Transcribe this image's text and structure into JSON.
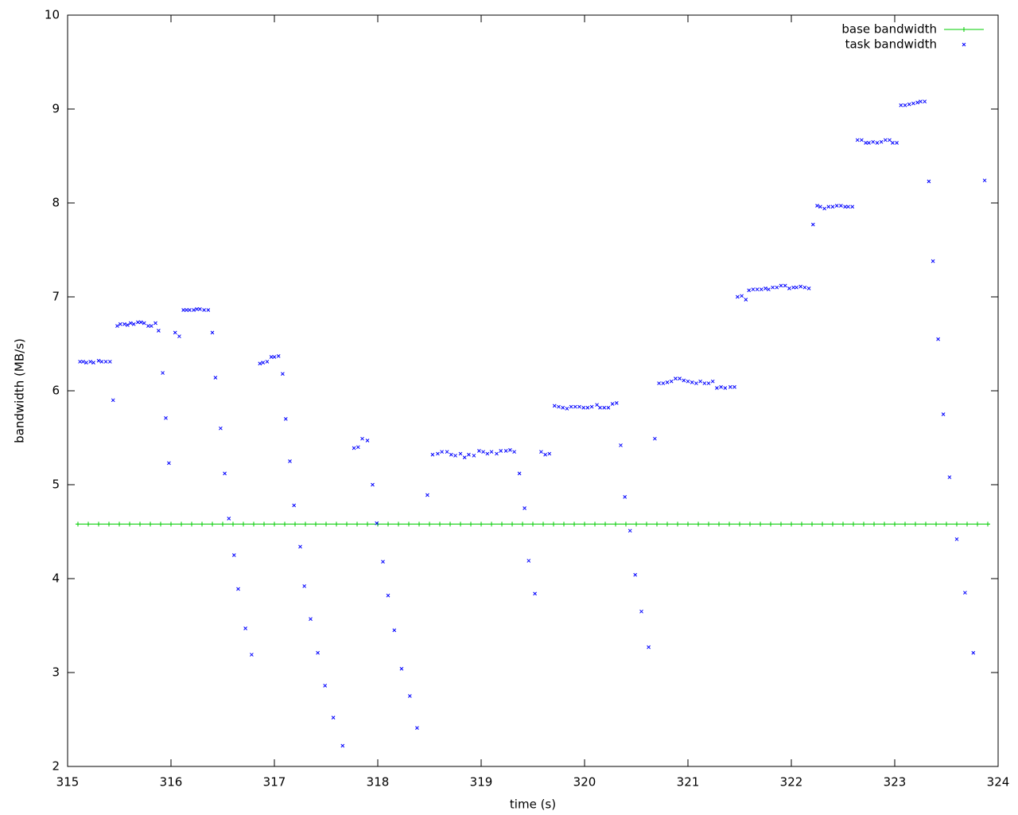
{
  "chart_data": {
    "type": "scatter",
    "xlabel": "time (s)",
    "ylabel": "bandwidth (MB/s)",
    "xlim": [
      315,
      324
    ],
    "xticks": [
      315,
      316,
      317,
      318,
      319,
      320,
      321,
      322,
      323,
      324
    ],
    "ylim": [
      2,
      10
    ],
    "yticks": [
      2,
      3,
      4,
      5,
      6,
      7,
      8,
      9,
      10
    ],
    "grid": false,
    "legend": "top-right",
    "series": [
      {
        "name": "base bandwidth",
        "color": "#00cc00",
        "marker": "plus",
        "line": true,
        "x": [
          315.1,
          315.2,
          315.3,
          315.4,
          315.5,
          315.6,
          315.7,
          315.8,
          315.9,
          316.0,
          316.1,
          316.2,
          316.3,
          316.4,
          316.5,
          316.6,
          316.7,
          316.8,
          316.9,
          317.0,
          317.1,
          317.2,
          317.3,
          317.4,
          317.5,
          317.6,
          317.7,
          317.8,
          317.9,
          318.0,
          318.1,
          318.2,
          318.3,
          318.4,
          318.5,
          318.6,
          318.7,
          318.8,
          318.9,
          319.0,
          319.1,
          319.2,
          319.3,
          319.4,
          319.5,
          319.6,
          319.7,
          319.8,
          319.9,
          320.0,
          320.1,
          320.2,
          320.3,
          320.4,
          320.5,
          320.6,
          320.7,
          320.8,
          320.9,
          321.0,
          321.1,
          321.2,
          321.3,
          321.4,
          321.5,
          321.6,
          321.7,
          321.8,
          321.9,
          322.0,
          322.1,
          322.2,
          322.3,
          322.4,
          322.5,
          322.6,
          322.7,
          322.8,
          322.9,
          323.0,
          323.1,
          323.2,
          323.3,
          323.4,
          323.5,
          323.6,
          323.7,
          323.8,
          323.9
        ],
        "values": [
          4.58,
          4.58,
          4.58,
          4.58,
          4.58,
          4.58,
          4.58,
          4.58,
          4.58,
          4.58,
          4.58,
          4.58,
          4.58,
          4.58,
          4.58,
          4.58,
          4.58,
          4.58,
          4.58,
          4.58,
          4.58,
          4.58,
          4.58,
          4.58,
          4.58,
          4.58,
          4.58,
          4.58,
          4.58,
          4.58,
          4.58,
          4.58,
          4.58,
          4.58,
          4.58,
          4.58,
          4.58,
          4.58,
          4.58,
          4.58,
          4.58,
          4.58,
          4.58,
          4.58,
          4.58,
          4.58,
          4.58,
          4.58,
          4.58,
          4.58,
          4.58,
          4.58,
          4.58,
          4.58,
          4.58,
          4.58,
          4.58,
          4.58,
          4.58,
          4.58,
          4.58,
          4.58,
          4.58,
          4.58,
          4.58,
          4.58,
          4.58,
          4.58,
          4.58,
          4.58,
          4.58,
          4.58,
          4.58,
          4.58,
          4.58,
          4.58,
          4.58,
          4.58,
          4.58,
          4.58,
          4.58,
          4.58,
          4.58,
          4.58,
          4.58,
          4.58,
          4.58,
          4.58,
          4.58
        ]
      },
      {
        "name": "task bandwidth",
        "color": "#0000ff",
        "marker": "cross",
        "line": false,
        "x": [
          315.12,
          315.15,
          315.18,
          315.22,
          315.25,
          315.3,
          315.33,
          315.37,
          315.41,
          315.44,
          315.48,
          315.51,
          315.55,
          315.58,
          315.61,
          315.64,
          315.68,
          315.71,
          315.74,
          315.78,
          315.81,
          315.85,
          315.88,
          315.92,
          315.95,
          315.98,
          316.04,
          316.08,
          316.12,
          316.15,
          316.18,
          316.22,
          316.25,
          316.28,
          316.32,
          316.36,
          316.4,
          316.43,
          316.48,
          316.52,
          316.56,
          316.61,
          316.65,
          316.72,
          316.78,
          316.86,
          316.89,
          316.93,
          316.97,
          317.0,
          317.04,
          317.08,
          317.11,
          317.15,
          317.19,
          317.25,
          317.29,
          317.35,
          317.42,
          317.49,
          317.57,
          317.66,
          317.77,
          317.81,
          317.85,
          317.9,
          317.95,
          317.99,
          318.05,
          318.1,
          318.16,
          318.23,
          318.31,
          318.38,
          318.48,
          318.53,
          318.58,
          318.62,
          318.67,
          318.71,
          318.75,
          318.8,
          318.84,
          318.88,
          318.93,
          318.98,
          319.02,
          319.06,
          319.1,
          319.15,
          319.19,
          319.24,
          319.28,
          319.32,
          319.37,
          319.42,
          319.46,
          319.52,
          319.58,
          319.62,
          319.66,
          319.71,
          319.75,
          319.79,
          319.83,
          319.87,
          319.91,
          319.95,
          319.99,
          320.03,
          320.07,
          320.12,
          320.15,
          320.19,
          320.23,
          320.27,
          320.31,
          320.35,
          320.39,
          320.44,
          320.49,
          320.55,
          320.62,
          320.68,
          320.72,
          320.76,
          320.8,
          320.84,
          320.88,
          320.92,
          320.96,
          321.0,
          321.04,
          321.08,
          321.12,
          321.16,
          321.2,
          321.24,
          321.28,
          321.32,
          321.36,
          321.41,
          321.45,
          321.48,
          321.52,
          321.56,
          321.59,
          321.63,
          321.67,
          321.71,
          321.75,
          321.78,
          321.82,
          321.86,
          321.9,
          321.94,
          321.98,
          322.02,
          322.05,
          322.09,
          322.13,
          322.17,
          322.21,
          322.25,
          322.28,
          322.32,
          322.36,
          322.4,
          322.44,
          322.48,
          322.52,
          322.55,
          322.59,
          322.64,
          322.68,
          322.72,
          322.75,
          322.79,
          322.83,
          322.87,
          322.91,
          322.95,
          322.98,
          323.02,
          323.06,
          323.1,
          323.14,
          323.18,
          323.22,
          323.25,
          323.29,
          323.33,
          323.37,
          323.42,
          323.47,
          323.53,
          323.6,
          323.68,
          323.76,
          323.87
        ],
        "values": [
          6.31,
          6.31,
          6.3,
          6.31,
          6.3,
          6.32,
          6.31,
          6.31,
          6.31,
          5.9,
          6.69,
          6.71,
          6.71,
          6.7,
          6.72,
          6.71,
          6.73,
          6.73,
          6.72,
          6.69,
          6.69,
          6.72,
          6.64,
          6.19,
          5.71,
          5.23,
          6.62,
          6.58,
          6.86,
          6.86,
          6.86,
          6.86,
          6.87,
          6.87,
          6.86,
          6.86,
          6.62,
          6.14,
          5.6,
          5.12,
          4.64,
          4.25,
          3.89,
          3.47,
          3.19,
          6.29,
          6.3,
          6.31,
          6.36,
          6.36,
          6.37,
          6.18,
          5.7,
          5.25,
          4.78,
          4.34,
          3.92,
          3.57,
          3.21,
          2.86,
          2.52,
          2.22,
          5.39,
          5.4,
          5.49,
          5.47,
          5.0,
          4.59,
          4.18,
          3.82,
          3.45,
          3.04,
          2.75,
          2.41,
          4.89,
          5.32,
          5.33,
          5.35,
          5.35,
          5.32,
          5.31,
          5.33,
          5.29,
          5.32,
          5.31,
          5.36,
          5.35,
          5.33,
          5.35,
          5.33,
          5.36,
          5.36,
          5.37,
          5.35,
          5.12,
          4.75,
          4.19,
          3.84,
          5.35,
          5.32,
          5.33,
          5.84,
          5.83,
          5.82,
          5.81,
          5.83,
          5.83,
          5.83,
          5.82,
          5.82,
          5.83,
          5.85,
          5.82,
          5.82,
          5.82,
          5.86,
          5.87,
          5.42,
          4.87,
          4.51,
          4.04,
          3.65,
          3.27,
          5.49,
          6.08,
          6.08,
          6.09,
          6.1,
          6.13,
          6.13,
          6.11,
          6.1,
          6.09,
          6.08,
          6.1,
          6.08,
          6.08,
          6.1,
          6.03,
          6.04,
          6.03,
          6.04,
          6.04,
          7.0,
          7.01,
          6.97,
          7.07,
          7.08,
          7.08,
          7.08,
          7.09,
          7.08,
          7.1,
          7.1,
          7.12,
          7.12,
          7.09,
          7.1,
          7.1,
          7.11,
          7.1,
          7.09,
          7.77,
          7.97,
          7.96,
          7.94,
          7.96,
          7.96,
          7.97,
          7.97,
          7.96,
          7.96,
          7.96,
          8.67,
          8.67,
          8.64,
          8.64,
          8.65,
          8.64,
          8.65,
          8.67,
          8.67,
          8.64,
          8.64,
          9.04,
          9.04,
          9.05,
          9.06,
          9.07,
          9.08,
          9.08,
          8.23,
          7.38,
          6.55,
          5.75,
          5.08,
          4.42,
          3.85,
          3.21,
          8.24
        ]
      }
    ]
  }
}
